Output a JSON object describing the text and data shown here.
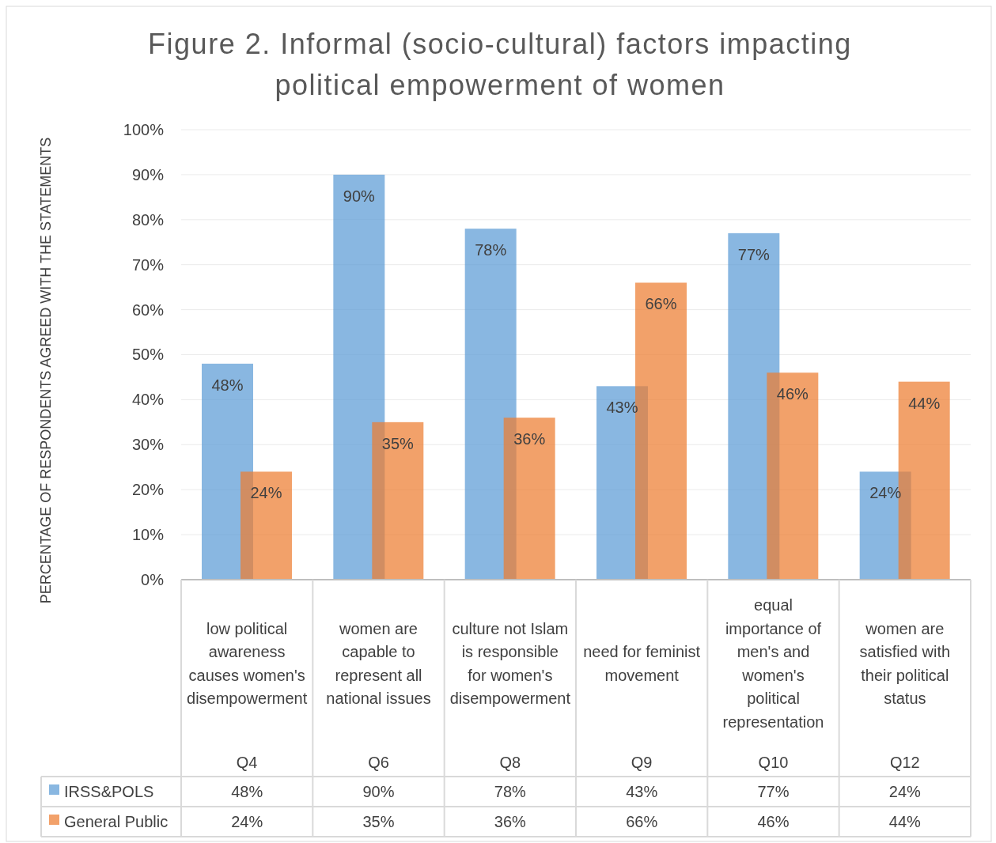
{
  "chart_data": {
    "type": "bar",
    "title": "Figure 2. Informal (socio-cultural) factors impacting political empowerment of women",
    "ylabel": "PERCENTAGE OF RESPONDENTS AGREED WITH THE STATEMENTS",
    "categories": [
      "low political awareness causes women's disempowerment\nQ4",
      "women are capable to represent all national issues\nQ6",
      "culture not Islam is responsible for women's disempowerment\nQ8",
      "need for feminist movement\nQ9",
      "equal importance of men's and women's political representation\nQ10",
      "women are satisfied with their political status\nQ12"
    ],
    "series": [
      {
        "name": "IRSS&POLS",
        "color": "#5b9bd5",
        "values": [
          48,
          90,
          78,
          43,
          77,
          24
        ],
        "value_labels": [
          "48%",
          "90%",
          "78%",
          "43%",
          "77%",
          "24%"
        ]
      },
      {
        "name": "General Public",
        "color": "#ed7d31",
        "values": [
          24,
          35,
          36,
          66,
          46,
          44
        ],
        "value_labels": [
          "24%",
          "35%",
          "36%",
          "66%",
          "46%",
          "44%"
        ]
      }
    ],
    "ylim": [
      0,
      100
    ],
    "yticks": [
      {
        "value": 0,
        "label": "0%"
      },
      {
        "value": 10,
        "label": "10%"
      },
      {
        "value": 20,
        "label": "20%"
      },
      {
        "value": 30,
        "label": "30%"
      },
      {
        "value": 40,
        "label": "40%"
      },
      {
        "value": 50,
        "label": "50%"
      },
      {
        "value": 60,
        "label": "60%"
      },
      {
        "value": 70,
        "label": "70%"
      },
      {
        "value": 80,
        "label": "80%"
      },
      {
        "value": 90,
        "label": "90%"
      },
      {
        "value": 100,
        "label": "100%"
      }
    ],
    "grid": "y",
    "legend": "bottom"
  }
}
